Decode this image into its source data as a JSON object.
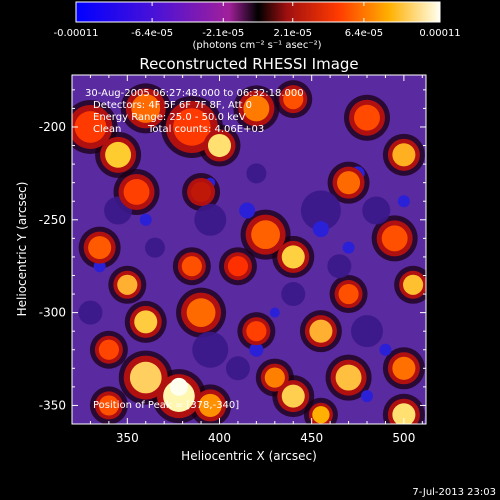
{
  "colorbar": {
    "tick_labels": [
      "-0.00011",
      "-6.4e-05",
      "-2.1e-05",
      "2.1e-05",
      "6.4e-05",
      "0.00011"
    ],
    "tick_values": [
      -0.00011,
      -6.4e-05,
      -2.1e-05,
      2.1e-05,
      6.4e-05,
      0.00011
    ],
    "unit_label": "(photons cm⁻² s⁻¹ asec⁻²)",
    "range": [
      -0.00011,
      0.00011
    ]
  },
  "chart_data": {
    "type": "heatmap",
    "title": "Reconstructed RHESSI Image",
    "xlabel": "Heliocentric X (arcsec)",
    "ylabel": "Heliocentric Y (arcsec)",
    "xlim": [
      320,
      512
    ],
    "ylim": [
      -360,
      -172
    ],
    "x_ticks": [
      350,
      400,
      450,
      500
    ],
    "y_ticks": [
      -200,
      -250,
      -300,
      -350
    ],
    "x_tick_labels": [
      "350",
      "400",
      "450",
      "500"
    ],
    "y_tick_labels": [
      "-200",
      "-250",
      "-300",
      "-350"
    ],
    "annotations": {
      "time_range": "30-Aug-2005 06:27:48.000 to 06:32:18.000",
      "detectors": "Detectors: 4F 5F 6F 7F 8F, Att 0",
      "energy": "Energy Range: 25.0 - 50.0 keV",
      "method": "Clean",
      "counts": "Total counts: 4.06E+03",
      "peak": "Position of Peak = [378,-340]"
    },
    "peak": [
      378,
      -340
    ]
  },
  "footer": {
    "timestamp": "7-Jul-2013 23:03"
  }
}
